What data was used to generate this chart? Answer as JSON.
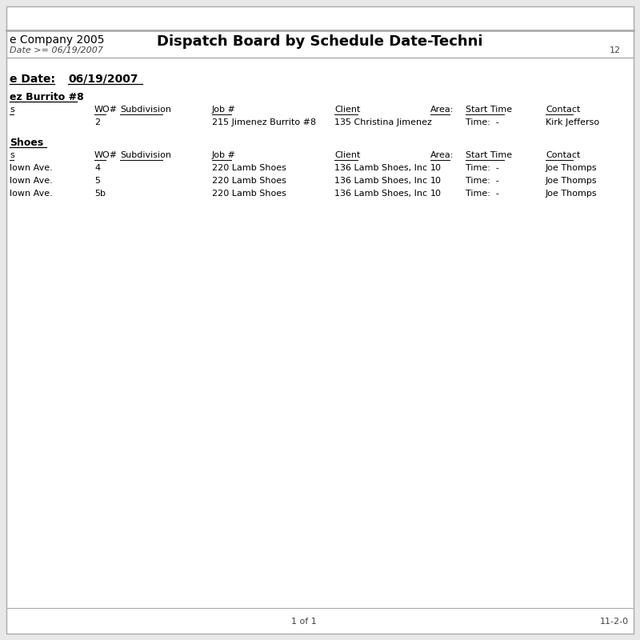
{
  "bg_color": "#e8e8e8",
  "page_bg": "#ffffff",
  "header_company": "e Company 2005",
  "header_filter": "Date >= 06/19/2007",
  "header_title": "Dispatch Board by Schedule Date-Techni",
  "header_page_num": "12",
  "schedule_date_label": "e Date:",
  "schedule_date_value": "06/19/2007",
  "section1_title": "ez Burrito #8",
  "section1_col_headers": [
    "s",
    "WO#",
    "Subdivision",
    "Job #",
    "Client",
    "Area:",
    "Start Time",
    "Contact"
  ],
  "section1_rows": [
    {
      "col0": "",
      "wo": "2",
      "subdiv": "",
      "job": "215 Jimenez Burrito #8",
      "client": "135 Christina Jimenez",
      "area": "",
      "start": "Time:  -",
      "contact": "Kirk Jefferso"
    }
  ],
  "section2_title": "Shoes",
  "section2_col_headers": [
    "s",
    "WO#",
    "Subdivision",
    "Job #",
    "Client",
    "Area:",
    "Start Time",
    "Contact"
  ],
  "section2_rows": [
    {
      "col0": "lown Ave.",
      "wo": "4",
      "subdiv": "",
      "job": "220 Lamb Shoes",
      "client": "136 Lamb Shoes, Inc",
      "area": "10",
      "start": "Time:  -",
      "contact": "Joe Thomps"
    },
    {
      "col0": "lown Ave.",
      "wo": "5",
      "subdiv": "",
      "job": "220 Lamb Shoes",
      "client": "136 Lamb Shoes, Inc",
      "area": "10",
      "start": "Time:  -",
      "contact": "Joe Thomps"
    },
    {
      "col0": "lown Ave.",
      "wo": "5b",
      "subdiv": "",
      "job": "220 Lamb Shoes",
      "client": "136 Lamb Shoes, Inc",
      "area": "10",
      "start": "Time:  -",
      "contact": "Joe Thomps"
    }
  ],
  "footer_left": "1 of 1",
  "footer_right": "11-2-0"
}
